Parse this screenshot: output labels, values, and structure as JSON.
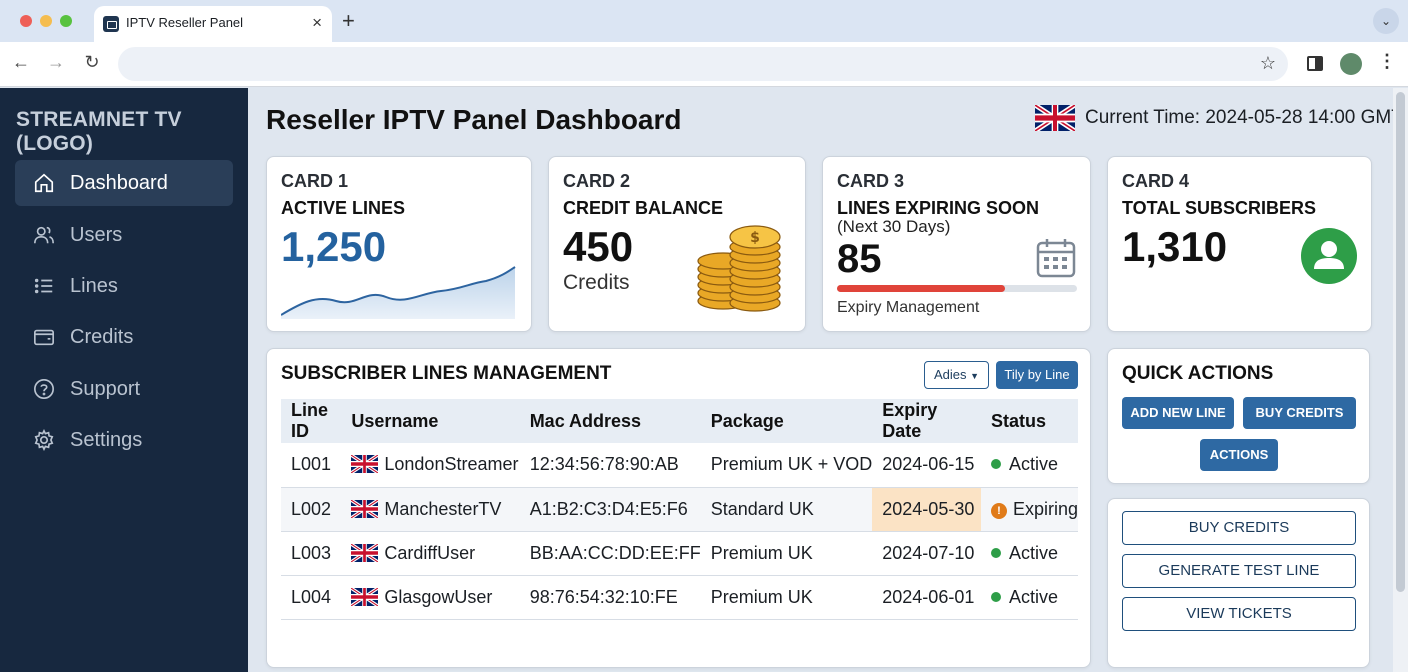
{
  "browser": {
    "tab_title": "IPTV Reseller Panel",
    "tab_close": "×",
    "new_tab": "+",
    "tab_menu": "⌄",
    "back": "←",
    "forward": "→",
    "reload": "↻",
    "bookmark": "☆",
    "menu": "⋮",
    "traffic_lights": [
      "#ee5f57",
      "#f5bd4f",
      "#58c23f"
    ]
  },
  "sidebar": {
    "logo": "STREAMNET TV (LOGO)",
    "items": [
      {
        "label": "Dashboard",
        "icon": "home-icon",
        "active": true
      },
      {
        "label": "Users",
        "icon": "users-icon"
      },
      {
        "label": "Lines",
        "icon": "list-icon"
      },
      {
        "label": "Credits",
        "icon": "wallet-icon"
      },
      {
        "label": "Support",
        "icon": "help-icon"
      },
      {
        "label": "Settings",
        "icon": "gear-icon"
      }
    ]
  },
  "header": {
    "title": "Reseller IPTV Panel Dashboard",
    "current_time": "Current Time: 2024-05-28 14:00 GMT"
  },
  "cards": {
    "card1": {
      "kicker": "CARD 1",
      "title": "ACTIVE LINES",
      "value": "1,250"
    },
    "card2": {
      "kicker": "CARD 2",
      "title": "CREDIT BALANCE",
      "value": "450",
      "unit": "Credits"
    },
    "card3": {
      "kicker": "CARD 3",
      "title": "LINES EXPIRING SOON",
      "subtitle": "(Next 30 Days)",
      "value": "85",
      "footer": "Expiry Management",
      "progress": 0.7
    },
    "card4": {
      "kicker": "CARD 4",
      "title": "TOTAL SUBSCRIBERS",
      "value": "1,310"
    }
  },
  "lines_table": {
    "title": "SUBSCRIBER LINES MANAGEMENT",
    "filter_label": "Adies",
    "filter_button": "Tily by Line",
    "columns": [
      "Line ID",
      "Username",
      "Mac Address",
      "Package",
      "Expiry Date",
      "Status"
    ],
    "rows": [
      {
        "id": "L001",
        "username": "LondonStreamer",
        "mac": "12:34:56:78:90:AB",
        "package": "Premium UK + VOD",
        "expiry": "2024-06-15",
        "status": "Active"
      },
      {
        "id": "L002",
        "username": "ManchesterTV",
        "mac": "A1:B2:C3:D4:E5:F6",
        "package": "Standard UK",
        "expiry": "2024-05-30",
        "status": "Expiring"
      },
      {
        "id": "L003",
        "username": "CardiffUser",
        "mac": "BB:AA:CC:DD:EE:FF",
        "package": "Premium UK",
        "expiry": "2024-07-10",
        "status": "Active"
      },
      {
        "id": "L004",
        "username": "GlasgowUser",
        "mac": "98:76:54:32:10:FE",
        "package": "Premium UK",
        "expiry": "2024-06-01",
        "status": "Active"
      }
    ]
  },
  "quick_actions": {
    "title": "QUICK ACTIONS",
    "add_new_line": "ADD NEW LINE",
    "buy_credits": "BUY CREDITS",
    "actions": "ACTIONS"
  },
  "secondary_actions": {
    "buy_credits": "BUY CREDITS",
    "generate_test_line": "GENERATE TEST LINE",
    "view_tickets": "VIEW TICKETS"
  },
  "colors": {
    "sidebar_bg": "#17283f",
    "accent_blue": "#2e69a3",
    "active_green": "#2e9e48",
    "expiring_orange": "#e07b1a",
    "progress_red": "#e0443a"
  }
}
